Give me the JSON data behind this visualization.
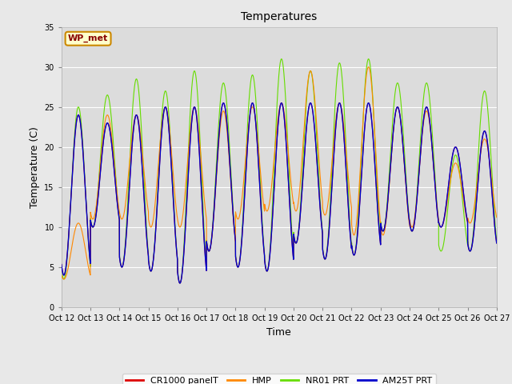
{
  "title": "Temperatures",
  "xlabel": "Time",
  "ylabel": "Temperature (C)",
  "ylim": [
    0,
    35
  ],
  "yticks": [
    0,
    5,
    10,
    15,
    20,
    25,
    30,
    35
  ],
  "xtick_labels": [
    "Oct 12",
    "Oct 13",
    "Oct 14",
    "Oct 15",
    "Oct 16",
    "Oct 17",
    "Oct 18",
    "Oct 19",
    "Oct 20",
    "Oct 21",
    "Oct 22",
    "Oct 23",
    "Oct 24",
    "Oct 25",
    "Oct 26",
    "Oct 27"
  ],
  "bg_outer": "#e8e8e8",
  "bg_inner": "#dcdcdc",
  "line_cr1000": "#dd0000",
  "line_hmp": "#ff8800",
  "line_nr01": "#66dd00",
  "line_am25t": "#0000cc",
  "legend_labels": [
    "CR1000 panelT",
    "HMP",
    "NR01 PRT",
    "AM25T PRT"
  ],
  "annotation_text": "WP_met",
  "annotation_bg": "#ffffcc",
  "annotation_border": "#cc8800",
  "day_mins_base": [
    4.0,
    10.0,
    5.0,
    4.5,
    3.0,
    7.0,
    5.0,
    4.5,
    8.0,
    6.0,
    6.5,
    9.5,
    9.5,
    10.0,
    7.0,
    10.0
  ],
  "day_maxs_base": [
    24.0,
    23.0,
    24.0,
    25.0,
    25.0,
    25.5,
    25.5,
    25.5,
    25.5,
    25.5,
    25.5,
    25.0,
    25.0,
    20.0,
    22.0,
    22.0
  ],
  "nr01_day_maxs": [
    25.0,
    26.5,
    28.5,
    27.0,
    29.5,
    28.0,
    29.0,
    31.0,
    29.5,
    30.5,
    31.0,
    28.0,
    28.0,
    19.0,
    27.0,
    27.0
  ],
  "nr01_day_mins": [
    3.5,
    10.0,
    5.0,
    4.5,
    3.0,
    7.0,
    5.0,
    4.5,
    8.0,
    6.0,
    6.5,
    9.5,
    9.5,
    7.0,
    7.0,
    7.0
  ],
  "hmp_day_maxs": [
    10.5,
    24.0,
    24.0,
    25.0,
    25.0,
    24.5,
    25.0,
    25.5,
    29.5,
    25.5,
    30.0,
    25.0,
    24.5,
    18.0,
    21.0,
    12.5
  ],
  "hmp_day_mins": [
    3.5,
    11.0,
    11.0,
    10.0,
    10.0,
    7.0,
    11.0,
    12.0,
    12.0,
    11.5,
    9.0,
    9.0,
    10.0,
    10.0,
    10.5,
    10.0
  ]
}
